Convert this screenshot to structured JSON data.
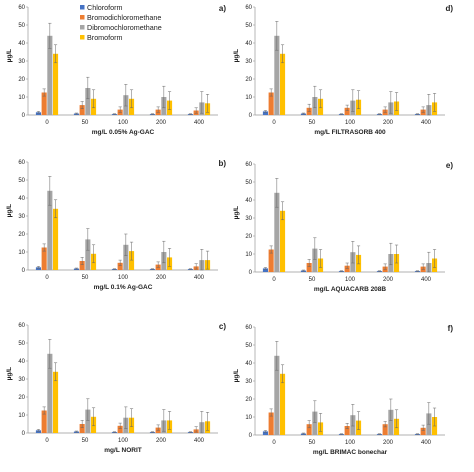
{
  "legend": {
    "items": [
      {
        "label": "Chloroform",
        "color": "#4472C4"
      },
      {
        "label": "Bromodichloromethane",
        "color": "#ED7D31"
      },
      {
        "label": "Dibromochloromethane",
        "color": "#A5A5A5"
      },
      {
        "label": "Bromoform",
        "color": "#FFC000"
      }
    ]
  },
  "chart_data": [
    {
      "type": "bar",
      "panel_label": "a)",
      "xlabel": "mg/L 0.05% Ag-GAC",
      "ylabel": "µg/L",
      "categories": [
        "0",
        "50",
        "100",
        "200",
        "400"
      ],
      "ylim": [
        0,
        60
      ],
      "yticks": [
        0,
        10,
        20,
        30,
        40,
        50,
        60
      ],
      "series": [
        {
          "name": "Chloroform",
          "values": [
            1.5,
            0.8,
            0.5,
            0.5,
            0.5
          ],
          "errors": [
            0.5,
            0.3,
            0.2,
            0.2,
            0.2
          ]
        },
        {
          "name": "Bromodichloromethane",
          "values": [
            12.5,
            5.5,
            3,
            3,
            2.5
          ],
          "errors": [
            2,
            2,
            1.5,
            1.5,
            1.5
          ]
        },
        {
          "name": "Dibromochloromethane",
          "values": [
            44,
            15,
            11,
            10,
            7
          ],
          "errors": [
            7,
            6,
            6,
            6,
            6
          ]
        },
        {
          "name": "Bromoform",
          "values": [
            34,
            9,
            9,
            8,
            6.5
          ],
          "errors": [
            5,
            5,
            5,
            5,
            5
          ]
        }
      ]
    },
    {
      "type": "bar",
      "panel_label": "d)",
      "xlabel": "mg/L FILTRASORB 400",
      "ylabel": "µg/L",
      "categories": [
        "0",
        "50",
        "100",
        "200",
        "400"
      ],
      "ylim": [
        0,
        60
      ],
      "yticks": [
        0,
        10,
        20,
        30,
        40,
        50,
        60
      ],
      "series": [
        {
          "name": "Chloroform",
          "values": [
            2,
            0.8,
            0.5,
            0.5,
            0.5
          ],
          "errors": [
            0.5,
            0.3,
            0.2,
            0.2,
            0.2
          ]
        },
        {
          "name": "Bromodichloromethane",
          "values": [
            12.5,
            4,
            4,
            3,
            3
          ],
          "errors": [
            2,
            2,
            1.5,
            1.5,
            1.5
          ]
        },
        {
          "name": "Dibromochloromethane",
          "values": [
            44,
            10,
            8,
            7,
            5.5
          ],
          "errors": [
            8,
            6,
            6,
            6,
            6
          ]
        },
        {
          "name": "Bromoform",
          "values": [
            34,
            9,
            8.5,
            7.5,
            7
          ],
          "errors": [
            5,
            5,
            5,
            5,
            5
          ]
        }
      ]
    },
    {
      "type": "bar",
      "panel_label": "b)",
      "xlabel": "mg/L 0.1% Ag-GAC",
      "ylabel": "µg/L",
      "categories": [
        "0",
        "50",
        "100",
        "200",
        "400"
      ],
      "ylim": [
        0,
        60
      ],
      "yticks": [
        0,
        10,
        20,
        30,
        40,
        50,
        60
      ],
      "series": [
        {
          "name": "Chloroform",
          "values": [
            1.5,
            0.8,
            0.5,
            0.5,
            0.5
          ],
          "errors": [
            0.5,
            0.3,
            0.2,
            0.2,
            0.2
          ]
        },
        {
          "name": "Bromodichloromethane",
          "values": [
            12.5,
            5,
            4,
            3,
            2
          ],
          "errors": [
            2,
            2,
            1.5,
            1.5,
            1.5
          ]
        },
        {
          "name": "Dibromochloromethane",
          "values": [
            44,
            17,
            14,
            10,
            5.5
          ],
          "errors": [
            8,
            6,
            6,
            6,
            6
          ]
        },
        {
          "name": "Bromoform",
          "values": [
            34,
            9,
            10.5,
            7,
            5.5
          ],
          "errors": [
            5,
            5,
            5,
            5,
            5
          ]
        }
      ]
    },
    {
      "type": "bar",
      "panel_label": "e)",
      "xlabel": "mg/L AQUACARB 208B",
      "ylabel": "µg/L",
      "categories": [
        "0",
        "50",
        "100",
        "200",
        "400"
      ],
      "ylim": [
        0,
        60
      ],
      "yticks": [
        0,
        10,
        20,
        30,
        40,
        50,
        60
      ],
      "series": [
        {
          "name": "Chloroform",
          "values": [
            2,
            0.8,
            0.5,
            0.5,
            0.5
          ],
          "errors": [
            0.5,
            0.3,
            0.2,
            0.2,
            0.2
          ]
        },
        {
          "name": "Bromodichloromethane",
          "values": [
            12.5,
            5,
            3.5,
            3,
            3
          ],
          "errors": [
            2,
            2,
            1.5,
            1.5,
            1.5
          ]
        },
        {
          "name": "Dibromochloromethane",
          "values": [
            44,
            13,
            11,
            10,
            5
          ],
          "errors": [
            8,
            6,
            6,
            6,
            6
          ]
        },
        {
          "name": "Bromoform",
          "values": [
            34,
            7.5,
            9.5,
            10,
            7.5
          ],
          "errors": [
            5,
            5,
            5,
            5,
            5
          ]
        }
      ]
    },
    {
      "type": "bar",
      "panel_label": "c)",
      "xlabel": "mg/L NORIT",
      "ylabel": "µg/L",
      "categories": [
        "0",
        "50",
        "100",
        "200",
        "400"
      ],
      "ylim": [
        0,
        60
      ],
      "yticks": [
        0,
        10,
        20,
        30,
        40,
        50,
        60
      ],
      "series": [
        {
          "name": "Chloroform",
          "values": [
            1.5,
            0.8,
            0.5,
            0.5,
            0.5
          ],
          "errors": [
            0.5,
            0.3,
            0.2,
            0.2,
            0.2
          ]
        },
        {
          "name": "Bromodichloromethane",
          "values": [
            12.5,
            5,
            4,
            3,
            2
          ],
          "errors": [
            2,
            2,
            1.5,
            1.5,
            1.5
          ]
        },
        {
          "name": "Dibromochloromethane",
          "values": [
            44,
            13,
            8.5,
            7,
            6
          ],
          "errors": [
            8,
            6,
            6,
            6,
            6
          ]
        },
        {
          "name": "Bromoform",
          "values": [
            34,
            9,
            8.5,
            7,
            6.5
          ],
          "errors": [
            5,
            5,
            5,
            5,
            5
          ]
        }
      ]
    },
    {
      "type": "bar",
      "panel_label": "f)",
      "xlabel": "mg/L BRIMAC bonechar",
      "ylabel": "µg/L",
      "categories": [
        "0",
        "50",
        "100",
        "200",
        "400"
      ],
      "ylim": [
        0,
        60
      ],
      "yticks": [
        0,
        10,
        20,
        30,
        40,
        50,
        60
      ],
      "series": [
        {
          "name": "Chloroform",
          "values": [
            2,
            0.8,
            0.5,
            0.5,
            0.5
          ],
          "errors": [
            0.5,
            0.3,
            0.2,
            0.2,
            0.2
          ]
        },
        {
          "name": "Bromodichloromethane",
          "values": [
            12.5,
            6,
            5,
            6,
            4
          ],
          "errors": [
            2,
            2,
            1.5,
            1.5,
            1.5
          ]
        },
        {
          "name": "Dibromochloromethane",
          "values": [
            44,
            13,
            11,
            14,
            12
          ],
          "errors": [
            8,
            6,
            6,
            6,
            6
          ]
        },
        {
          "name": "Bromoform",
          "values": [
            34,
            7,
            8,
            9,
            10
          ],
          "errors": [
            5,
            5,
            5,
            5,
            5
          ]
        }
      ]
    }
  ]
}
